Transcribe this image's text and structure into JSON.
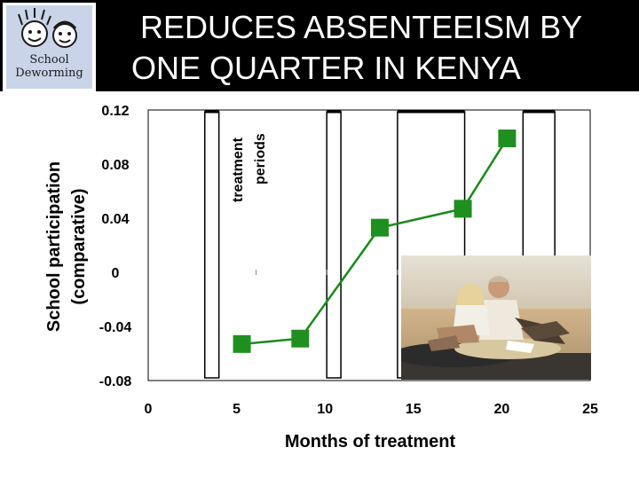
{
  "banner": {
    "logo_alt": "School Deworming",
    "logo_line1": "School",
    "logo_line2": "Deworming",
    "headline_line1": "REDUCES ABSENTEEISM BY",
    "headline_line2": "ONE QUARTER IN KENYA"
  },
  "chart_data": {
    "type": "line",
    "xlabel": "Months of treatment",
    "ylabel_line1": "School participation",
    "ylabel_line2": "(comparative)",
    "xlim": [
      0,
      25
    ],
    "ylim": [
      -0.08,
      0.12
    ],
    "xticks": [
      "0",
      "5",
      "10",
      "15",
      "20",
      "25"
    ],
    "yticks": [
      "0.12",
      "0.08",
      "0.04",
      "0",
      "-0.04",
      "-0.08"
    ],
    "series": [
      {
        "x": [
          5.3,
          8.6,
          13.1,
          17.8,
          20.3
        ],
        "y": [
          -0.053,
          -0.049,
          0.033,
          0.047,
          0.099
        ]
      }
    ],
    "treatment_periods": [
      [
        3.2,
        4.0
      ],
      [
        10.1,
        10.9
      ],
      [
        14.1,
        17.9
      ],
      [
        21.2,
        23.0
      ]
    ],
    "annotation_line1": "treatment",
    "annotation_line2": "periods",
    "series_color": "#1a8a1a",
    "marker_color": "#1f8f1f",
    "grid": false
  },
  "photo": {
    "description_visible": false,
    "sky_color": "#d8d0c0",
    "ground_color": "#c8aa80"
  }
}
